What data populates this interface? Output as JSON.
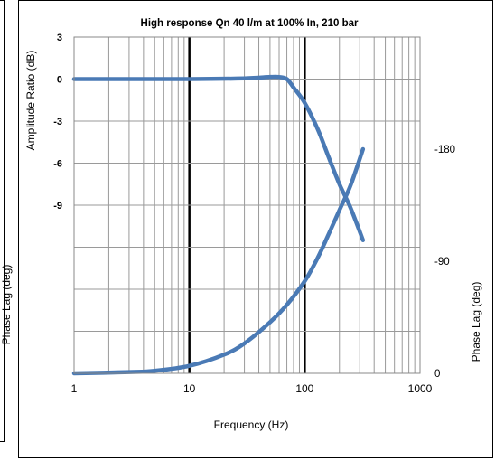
{
  "left_panel": {
    "clipped_label": "Phase Lag (deg)"
  },
  "chart_data": {
    "type": "line",
    "title": "High response Qn 40 l/m at 100% In, 210 bar",
    "xlabel": "Frequency (Hz)",
    "ylabel_left": "Amplitude Ratio (dB)",
    "ylabel_right": "Phase Lag (deg)",
    "x_scale": "log",
    "xlim": [
      1,
      1000
    ],
    "x_ticks": [
      1,
      10,
      100,
      1000
    ],
    "x_tick_labels": [
      "1",
      "10",
      "100",
      "1000"
    ],
    "ylim_left": [
      -21,
      3
    ],
    "y_left_ticks": [
      3,
      0,
      -3,
      -6,
      -9
    ],
    "y_left_tick_labels": [
      "3",
      "0",
      "-3",
      "-6",
      "-9"
    ],
    "ylim_right": [
      0,
      270
    ],
    "y_right_ticks": [
      -180,
      -90,
      0
    ],
    "y_right_tick_labels": [
      "-180",
      "-90",
      "0"
    ],
    "grid": true,
    "line_color": "#4a7ab5",
    "series": [
      {
        "axis": "left",
        "x": [
          1,
          10,
          30,
          50,
          60,
          70,
          80,
          100,
          130,
          160,
          200,
          250,
          320
        ],
        "y": [
          0,
          0,
          0.05,
          0.15,
          0.15,
          0,
          -0.6,
          -1.7,
          -3.6,
          -5.5,
          -7.5,
          -9.2,
          -11.5
        ]
      },
      {
        "axis": "right",
        "x": [
          1,
          3,
          5,
          10,
          20,
          30,
          50,
          70,
          100,
          130,
          160,
          200,
          250,
          320
        ],
        "y": [
          0,
          1,
          2,
          6,
          15,
          24,
          41,
          55,
          74,
          93,
          111,
          131,
          151,
          180
        ]
      }
    ]
  }
}
